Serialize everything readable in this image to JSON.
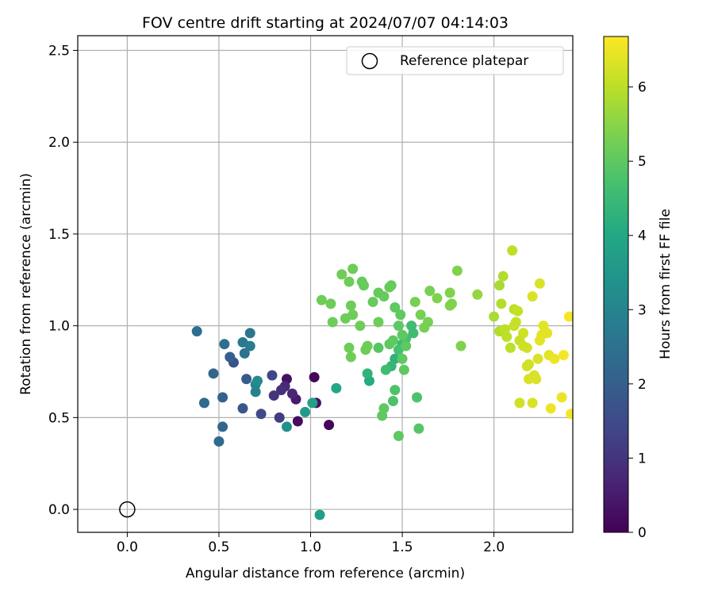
{
  "chart_data": {
    "type": "scatter",
    "title": "FOV centre drift starting at 2024/07/07 04:14:03",
    "xlabel": "Angular distance from reference (arcmin)",
    "ylabel": "Rotation from reference (arcmin)",
    "xlim": [
      -0.27,
      2.43
    ],
    "ylim": [
      -0.125,
      2.58
    ],
    "xticks": [
      "0.0",
      "0.5",
      "1.0",
      "1.5",
      "2.0"
    ],
    "yticks": [
      "0.0",
      "0.5",
      "1.0",
      "1.5",
      "2.0",
      "2.5"
    ],
    "grid": true,
    "legend": {
      "entry": "Reference platepar",
      "position": "top-right"
    },
    "reference_point": {
      "x": 0.0,
      "y": 0.0
    },
    "colorbar": {
      "label": "Hours from first FF file",
      "range": [
        0,
        6.68
      ],
      "ticks": [
        "0",
        "1",
        "2",
        "3",
        "4",
        "5",
        "6"
      ],
      "colormap": "viridis"
    },
    "points": [
      {
        "x": 1.02,
        "y": 0.72,
        "h": 0.1
      },
      {
        "x": 1.1,
        "y": 0.46,
        "h": 0.1
      },
      {
        "x": 0.93,
        "y": 0.48,
        "h": 0.2
      },
      {
        "x": 0.87,
        "y": 0.71,
        "h": 0.3
      },
      {
        "x": 1.03,
        "y": 0.58,
        "h": 0.3
      },
      {
        "x": 0.92,
        "y": 0.6,
        "h": 0.5
      },
      {
        "x": 0.9,
        "y": 0.63,
        "h": 0.7
      },
      {
        "x": 0.86,
        "y": 0.67,
        "h": 0.8
      },
      {
        "x": 0.84,
        "y": 0.65,
        "h": 0.9
      },
      {
        "x": 0.8,
        "y": 0.62,
        "h": 1.0
      },
      {
        "x": 0.83,
        "y": 0.5,
        "h": 1.2
      },
      {
        "x": 0.79,
        "y": 0.73,
        "h": 1.4
      },
      {
        "x": 0.73,
        "y": 0.52,
        "h": 1.5
      },
      {
        "x": 0.58,
        "y": 0.8,
        "h": 1.7
      },
      {
        "x": 0.63,
        "y": 0.55,
        "h": 1.8
      },
      {
        "x": 0.65,
        "y": 0.71,
        "h": 1.9
      },
      {
        "x": 0.56,
        "y": 0.83,
        "h": 2.0
      },
      {
        "x": 0.52,
        "y": 0.61,
        "h": 2.1
      },
      {
        "x": 0.47,
        "y": 0.74,
        "h": 2.2
      },
      {
        "x": 0.52,
        "y": 0.45,
        "h": 2.2
      },
      {
        "x": 0.5,
        "y": 0.37,
        "h": 2.3
      },
      {
        "x": 0.42,
        "y": 0.58,
        "h": 2.3
      },
      {
        "x": 0.38,
        "y": 0.97,
        "h": 2.4
      },
      {
        "x": 0.53,
        "y": 0.9,
        "h": 2.4
      },
      {
        "x": 0.64,
        "y": 0.85,
        "h": 2.5
      },
      {
        "x": 0.67,
        "y": 0.96,
        "h": 2.6
      },
      {
        "x": 0.63,
        "y": 0.91,
        "h": 2.7
      },
      {
        "x": 0.67,
        "y": 0.89,
        "h": 2.8
      },
      {
        "x": 0.7,
        "y": 0.64,
        "h": 2.9
      },
      {
        "x": 0.7,
        "y": 0.68,
        "h": 3.0
      },
      {
        "x": 0.71,
        "y": 0.7,
        "h": 3.2
      },
      {
        "x": 0.87,
        "y": 0.45,
        "h": 3.3
      },
      {
        "x": 0.97,
        "y": 0.53,
        "h": 3.6
      },
      {
        "x": 1.05,
        "y": -0.03,
        "h": 3.7
      },
      {
        "x": 1.01,
        "y": 0.58,
        "h": 3.8
      },
      {
        "x": 1.14,
        "y": 0.66,
        "h": 4.0
      },
      {
        "x": 1.32,
        "y": 0.7,
        "h": 4.1
      },
      {
        "x": 1.31,
        "y": 0.74,
        "h": 4.3
      },
      {
        "x": 1.46,
        "y": 0.82,
        "h": 4.3
      },
      {
        "x": 1.44,
        "y": 0.78,
        "h": 4.4
      },
      {
        "x": 1.5,
        "y": 0.9,
        "h": 4.5
      },
      {
        "x": 1.55,
        "y": 1.0,
        "h": 4.6
      },
      {
        "x": 1.56,
        "y": 0.96,
        "h": 4.6
      },
      {
        "x": 1.41,
        "y": 0.76,
        "h": 4.6
      },
      {
        "x": 1.52,
        "y": 0.93,
        "h": 4.7
      },
      {
        "x": 1.48,
        "y": 0.87,
        "h": 4.7
      },
      {
        "x": 1.45,
        "y": 0.59,
        "h": 4.8
      },
      {
        "x": 1.46,
        "y": 0.65,
        "h": 4.8
      },
      {
        "x": 1.58,
        "y": 0.61,
        "h": 4.8
      },
      {
        "x": 1.59,
        "y": 0.44,
        "h": 4.9
      },
      {
        "x": 1.39,
        "y": 0.51,
        "h": 5.0
      },
      {
        "x": 1.4,
        "y": 0.55,
        "h": 5.0
      },
      {
        "x": 1.48,
        "y": 0.4,
        "h": 5.0
      },
      {
        "x": 1.37,
        "y": 0.88,
        "h": 4.9
      },
      {
        "x": 1.43,
        "y": 0.9,
        "h": 5.0
      },
      {
        "x": 1.45,
        "y": 0.92,
        "h": 5.0
      },
      {
        "x": 1.48,
        "y": 1.0,
        "h": 5.0
      },
      {
        "x": 1.5,
        "y": 0.95,
        "h": 5.0
      },
      {
        "x": 1.52,
        "y": 0.89,
        "h": 5.0
      },
      {
        "x": 1.5,
        "y": 0.82,
        "h": 5.0
      },
      {
        "x": 1.51,
        "y": 0.76,
        "h": 5.0
      },
      {
        "x": 1.49,
        "y": 1.06,
        "h": 5.0
      },
      {
        "x": 1.46,
        "y": 1.1,
        "h": 5.0
      },
      {
        "x": 1.43,
        "y": 1.21,
        "h": 5.1
      },
      {
        "x": 1.44,
        "y": 1.22,
        "h": 5.1
      },
      {
        "x": 1.4,
        "y": 1.16,
        "h": 5.1
      },
      {
        "x": 1.37,
        "y": 1.18,
        "h": 5.1
      },
      {
        "x": 1.34,
        "y": 1.13,
        "h": 5.1
      },
      {
        "x": 1.29,
        "y": 1.22,
        "h": 5.1
      },
      {
        "x": 1.28,
        "y": 1.24,
        "h": 5.1
      },
      {
        "x": 1.23,
        "y": 1.31,
        "h": 5.2
      },
      {
        "x": 1.21,
        "y": 1.24,
        "h": 5.2
      },
      {
        "x": 1.17,
        "y": 1.28,
        "h": 5.2
      },
      {
        "x": 1.22,
        "y": 1.11,
        "h": 5.2
      },
      {
        "x": 1.23,
        "y": 1.06,
        "h": 5.2
      },
      {
        "x": 1.19,
        "y": 1.04,
        "h": 5.2
      },
      {
        "x": 1.12,
        "y": 1.02,
        "h": 5.2
      },
      {
        "x": 1.11,
        "y": 1.12,
        "h": 5.2
      },
      {
        "x": 1.06,
        "y": 1.14,
        "h": 5.2
      },
      {
        "x": 1.27,
        "y": 1.0,
        "h": 5.2
      },
      {
        "x": 1.21,
        "y": 0.88,
        "h": 5.2
      },
      {
        "x": 1.22,
        "y": 0.83,
        "h": 5.2
      },
      {
        "x": 1.3,
        "y": 0.87,
        "h": 5.2
      },
      {
        "x": 1.31,
        "y": 0.89,
        "h": 5.2
      },
      {
        "x": 1.37,
        "y": 1.02,
        "h": 5.2
      },
      {
        "x": 1.57,
        "y": 1.13,
        "h": 5.3
      },
      {
        "x": 1.6,
        "y": 1.06,
        "h": 5.3
      },
      {
        "x": 1.62,
        "y": 0.99,
        "h": 5.3
      },
      {
        "x": 1.64,
        "y": 1.02,
        "h": 5.3
      },
      {
        "x": 1.65,
        "y": 1.19,
        "h": 5.3
      },
      {
        "x": 1.69,
        "y": 1.15,
        "h": 5.4
      },
      {
        "x": 1.76,
        "y": 1.11,
        "h": 5.4
      },
      {
        "x": 1.77,
        "y": 1.12,
        "h": 5.4
      },
      {
        "x": 1.76,
        "y": 1.18,
        "h": 5.4
      },
      {
        "x": 1.8,
        "y": 1.3,
        "h": 5.4
      },
      {
        "x": 1.82,
        "y": 0.89,
        "h": 5.4
      },
      {
        "x": 1.91,
        "y": 1.17,
        "h": 5.6
      },
      {
        "x": 2.0,
        "y": 1.05,
        "h": 5.8
      },
      {
        "x": 2.03,
        "y": 1.22,
        "h": 5.8
      },
      {
        "x": 2.05,
        "y": 1.27,
        "h": 5.9
      },
      {
        "x": 2.04,
        "y": 1.12,
        "h": 5.9
      },
      {
        "x": 2.03,
        "y": 0.97,
        "h": 5.9
      },
      {
        "x": 2.06,
        "y": 0.98,
        "h": 6.0
      },
      {
        "x": 2.07,
        "y": 0.94,
        "h": 6.0
      },
      {
        "x": 2.09,
        "y": 0.88,
        "h": 6.0
      },
      {
        "x": 2.1,
        "y": 1.41,
        "h": 6.0
      },
      {
        "x": 2.11,
        "y": 1.09,
        "h": 6.0
      },
      {
        "x": 2.11,
        "y": 1.0,
        "h": 6.1
      },
      {
        "x": 2.12,
        "y": 1.02,
        "h": 6.1
      },
      {
        "x": 2.13,
        "y": 1.08,
        "h": 6.1
      },
      {
        "x": 2.14,
        "y": 0.92,
        "h": 6.1
      },
      {
        "x": 2.14,
        "y": 0.58,
        "h": 6.2
      },
      {
        "x": 2.16,
        "y": 0.96,
        "h": 6.2
      },
      {
        "x": 2.16,
        "y": 0.89,
        "h": 6.2
      },
      {
        "x": 2.18,
        "y": 0.88,
        "h": 6.2
      },
      {
        "x": 2.18,
        "y": 0.78,
        "h": 6.2
      },
      {
        "x": 2.19,
        "y": 0.79,
        "h": 6.2
      },
      {
        "x": 2.19,
        "y": 0.71,
        "h": 6.3
      },
      {
        "x": 2.21,
        "y": 0.58,
        "h": 6.3
      },
      {
        "x": 2.21,
        "y": 1.16,
        "h": 6.3
      },
      {
        "x": 2.22,
        "y": 0.73,
        "h": 6.3
      },
      {
        "x": 2.23,
        "y": 0.71,
        "h": 6.3
      },
      {
        "x": 2.24,
        "y": 0.82,
        "h": 6.3
      },
      {
        "x": 2.25,
        "y": 1.23,
        "h": 6.3
      },
      {
        "x": 2.25,
        "y": 0.92,
        "h": 6.4
      },
      {
        "x": 2.26,
        "y": 0.95,
        "h": 6.4
      },
      {
        "x": 2.27,
        "y": 1.0,
        "h": 6.4
      },
      {
        "x": 2.29,
        "y": 0.96,
        "h": 6.4
      },
      {
        "x": 2.3,
        "y": 0.84,
        "h": 6.4
      },
      {
        "x": 2.31,
        "y": 0.55,
        "h": 6.5
      },
      {
        "x": 2.33,
        "y": 0.82,
        "h": 6.5
      },
      {
        "x": 2.37,
        "y": 0.61,
        "h": 6.5
      },
      {
        "x": 2.38,
        "y": 0.84,
        "h": 6.6
      },
      {
        "x": 2.41,
        "y": 1.05,
        "h": 6.6
      },
      {
        "x": 2.42,
        "y": 0.52,
        "h": 6.6
      }
    ]
  }
}
